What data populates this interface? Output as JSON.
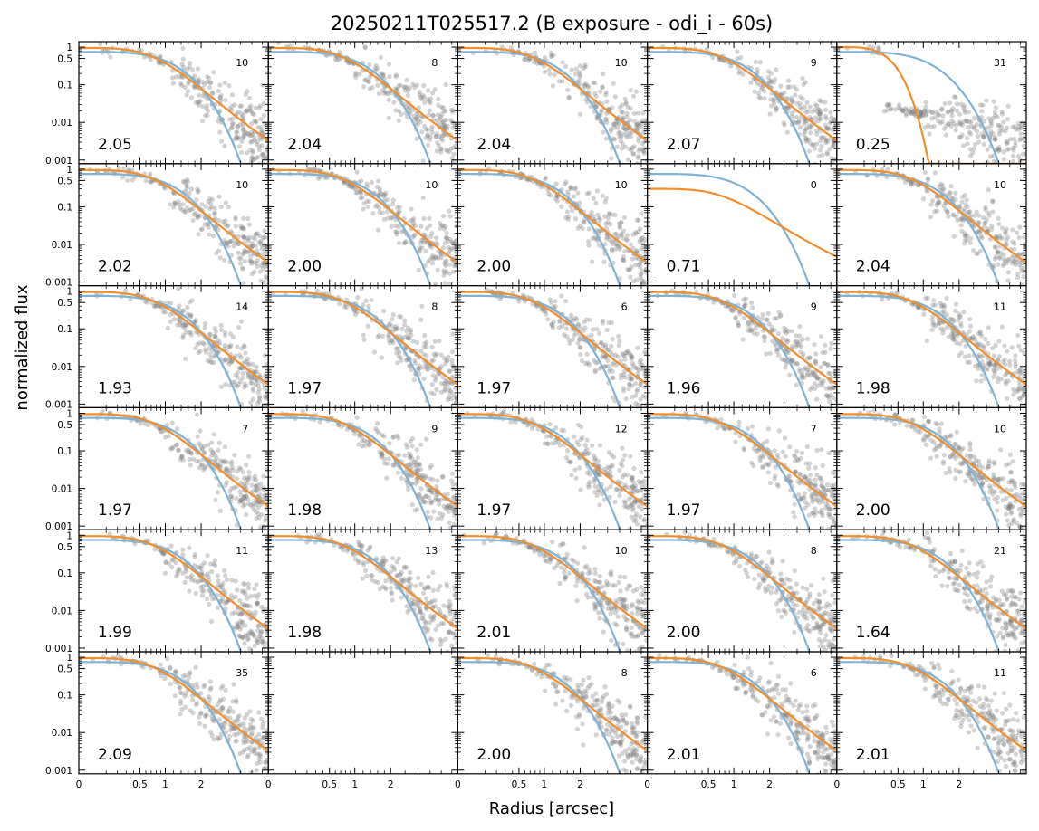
{
  "chart_data": {
    "type": "scatter",
    "title": "20250211T025517.2 (B exposure - odi_i - 60s)",
    "xlabel": "Radius [arcsec]",
    "ylabel": "normalized flux",
    "y_scale": "log",
    "ylim": [
      0.0008,
      1.4
    ],
    "y_ticks": [
      {
        "value": 1,
        "label": "1"
      },
      {
        "value": 0.5,
        "label": "0.5"
      },
      {
        "value": 0.1,
        "label": "0.1"
      },
      {
        "value": 0.01,
        "label": "0.01"
      },
      {
        "value": 0.001,
        "label": "0.001"
      }
    ],
    "x_scale": "sqrt",
    "xlim": [
      0,
      4.8
    ],
    "x_ticks": [
      {
        "value": 0,
        "label": "0"
      },
      {
        "value": 0.5,
        "label": "0.5"
      },
      {
        "value": 1,
        "label": "1"
      },
      {
        "value": 2,
        "label": "2"
      }
    ],
    "grid": false,
    "layout": {
      "rows": 6,
      "cols": 5
    },
    "series_colors": {
      "points": "#808080",
      "model_fit": "#f28e2b",
      "reference": "#7fb3d5"
    },
    "panels": [
      {
        "row": 0,
        "col": 0,
        "fwhm": "2.05",
        "nstars": "10"
      },
      {
        "row": 0,
        "col": 1,
        "fwhm": "2.04",
        "nstars": "8"
      },
      {
        "row": 0,
        "col": 2,
        "fwhm": "2.04",
        "nstars": "10"
      },
      {
        "row": 0,
        "col": 3,
        "fwhm": "2.07",
        "nstars": "9"
      },
      {
        "row": 0,
        "col": 4,
        "fwhm": "0.25",
        "nstars": "31"
      },
      {
        "row": 1,
        "col": 0,
        "fwhm": "2.02",
        "nstars": "10"
      },
      {
        "row": 1,
        "col": 1,
        "fwhm": "2.00",
        "nstars": "10"
      },
      {
        "row": 1,
        "col": 2,
        "fwhm": "2.00",
        "nstars": "10"
      },
      {
        "row": 1,
        "col": 3,
        "fwhm": "0.71",
        "nstars": "0"
      },
      {
        "row": 1,
        "col": 4,
        "fwhm": "2.04",
        "nstars": "10"
      },
      {
        "row": 2,
        "col": 0,
        "fwhm": "1.93",
        "nstars": "14"
      },
      {
        "row": 2,
        "col": 1,
        "fwhm": "1.97",
        "nstars": "8"
      },
      {
        "row": 2,
        "col": 2,
        "fwhm": "1.97",
        "nstars": "6"
      },
      {
        "row": 2,
        "col": 3,
        "fwhm": "1.96",
        "nstars": "9"
      },
      {
        "row": 2,
        "col": 4,
        "fwhm": "1.98",
        "nstars": "11"
      },
      {
        "row": 3,
        "col": 0,
        "fwhm": "1.97",
        "nstars": "7"
      },
      {
        "row": 3,
        "col": 1,
        "fwhm": "1.98",
        "nstars": "9"
      },
      {
        "row": 3,
        "col": 2,
        "fwhm": "1.97",
        "nstars": "12"
      },
      {
        "row": 3,
        "col": 3,
        "fwhm": "1.97",
        "nstars": "7"
      },
      {
        "row": 3,
        "col": 4,
        "fwhm": "2.00",
        "nstars": "10"
      },
      {
        "row": 4,
        "col": 0,
        "fwhm": "1.99",
        "nstars": "11"
      },
      {
        "row": 4,
        "col": 1,
        "fwhm": "1.98",
        "nstars": "13"
      },
      {
        "row": 4,
        "col": 2,
        "fwhm": "2.01",
        "nstars": "10"
      },
      {
        "row": 4,
        "col": 3,
        "fwhm": "2.00",
        "nstars": "8"
      },
      {
        "row": 4,
        "col": 4,
        "fwhm": "1.64",
        "nstars": "21"
      },
      {
        "row": 5,
        "col": 0,
        "fwhm": "2.09",
        "nstars": "35"
      },
      {
        "row": 5,
        "col": 1,
        "empty": true
      },
      {
        "row": 5,
        "col": 2,
        "fwhm": "2.00",
        "nstars": "8"
      },
      {
        "row": 5,
        "col": 3,
        "fwhm": "2.01",
        "nstars": "6"
      },
      {
        "row": 5,
        "col": 4,
        "fwhm": "2.01",
        "nstars": "11"
      }
    ]
  }
}
